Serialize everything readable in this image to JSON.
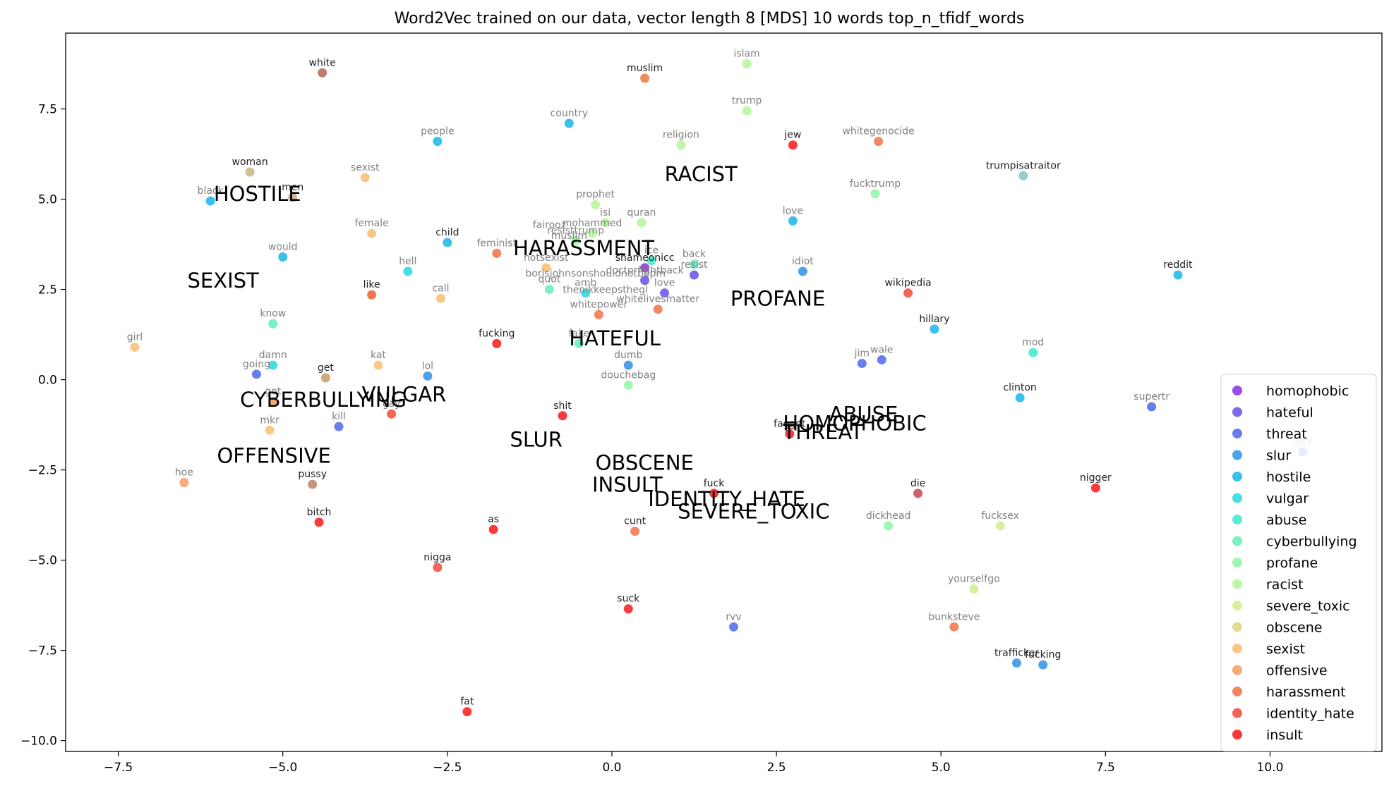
{
  "chart_data": {
    "type": "scatter",
    "title": "Word2Vec trained on our data, vector length 8 [MDS] 10 words top_n_tfidf_words",
    "xlabel": "",
    "ylabel": "",
    "xlim": [
      -8.3,
      11.7
    ],
    "ylim": [
      -10.3,
      9.6
    ],
    "x_ticks": [
      -7.5,
      -5.0,
      -2.5,
      0.0,
      2.5,
      5.0,
      7.5,
      10.0
    ],
    "x_tick_labels": [
      "−7.5",
      "−5.0",
      "−2.5",
      "0.0",
      "2.5",
      "5.0",
      "7.5",
      "10.0"
    ],
    "y_ticks": [
      7.5,
      5.0,
      2.5,
      0.0,
      -2.5,
      -5.0,
      -7.5,
      -10.0
    ],
    "y_tick_labels": [
      "7.5",
      "5.0",
      "2.5",
      "0.0",
      "−2.5",
      "−5.0",
      "−7.5",
      "−10.0"
    ],
    "grid": false,
    "legend_position": "lower-right",
    "series": [
      {
        "name": "homophobic",
        "color": "#8b2be2",
        "points": [
          {
            "x": 0.5,
            "y": 3.1,
            "label": "shameonicc",
            "dark": true
          }
        ]
      },
      {
        "name": "hateful",
        "color": "#6a4de8",
        "points": [
          {
            "x": 0.5,
            "y": 2.75,
            "label": "doctorfightback",
            "dark": false
          },
          {
            "x": 0.8,
            "y": 2.4,
            "label": "love",
            "dark": false
          },
          {
            "x": 1.25,
            "y": 2.9,
            "label": "resist",
            "dark": false
          }
        ]
      },
      {
        "name": "threat",
        "color": "#4f67eb",
        "points": [
          {
            "x": -5.4,
            "y": 0.15,
            "label": "going",
            "dark": false
          },
          {
            "x": -4.15,
            "y": -1.3,
            "label": "kill",
            "dark": false
          },
          {
            "x": 3.8,
            "y": 0.45,
            "label": "jim",
            "dark": false
          },
          {
            "x": 4.1,
            "y": 0.55,
            "label": "wale",
            "dark": false
          },
          {
            "x": 1.85,
            "y": -6.85,
            "label": "rvv",
            "dark": false
          },
          {
            "x": 8.2,
            "y": -0.75,
            "label": "supertr",
            "dark": false
          },
          {
            "x": 10.5,
            "y": -2.0,
            "label": "luck",
            "dark": false
          }
        ]
      },
      {
        "name": "slur",
        "color": "#2f90e8",
        "points": [
          {
            "x": -2.8,
            "y": 0.1,
            "label": "lol",
            "dark": false
          },
          {
            "x": 0.25,
            "y": 0.4,
            "label": "dumb",
            "dark": false
          },
          {
            "x": 2.9,
            "y": 3.0,
            "label": "idiot",
            "dark": false
          },
          {
            "x": 6.15,
            "y": -7.85,
            "label": "trafficker",
            "dark": true
          },
          {
            "x": 6.55,
            "y": -7.9,
            "label": "fucking",
            "dark": true
          }
        ]
      },
      {
        "name": "hostile",
        "color": "#18b6e6",
        "points": [
          {
            "x": -6.1,
            "y": 4.95,
            "label": "black",
            "dark": false
          },
          {
            "x": -2.65,
            "y": 6.6,
            "label": "people",
            "dark": false
          },
          {
            "x": -0.65,
            "y": 7.1,
            "label": "country",
            "dark": false
          },
          {
            "x": -5.0,
            "y": 3.4,
            "label": "would",
            "dark": false
          },
          {
            "x": -2.5,
            "y": 3.8,
            "label": "child",
            "dark": true
          },
          {
            "x": 2.75,
            "y": 4.4,
            "label": "love",
            "dark": false
          },
          {
            "x": 4.9,
            "y": 1.4,
            "label": "hillary",
            "dark": true
          },
          {
            "x": 6.2,
            "y": -0.5,
            "label": "clinton",
            "dark": true
          },
          {
            "x": 8.6,
            "y": 2.9,
            "label": "reddit",
            "dark": true
          }
        ]
      },
      {
        "name": "vulgar",
        "color": "#25d8de",
        "points": [
          {
            "x": -3.1,
            "y": 3.0,
            "label": "hell",
            "dark": false
          },
          {
            "x": -5.15,
            "y": 0.4,
            "label": "damn",
            "dark": false
          },
          {
            "x": -0.4,
            "y": 2.4,
            "label": "amb",
            "dark": false
          }
        ]
      },
      {
        "name": "abuse",
        "color": "#3ce8cc",
        "points": [
          {
            "x": 6.4,
            "y": 0.75,
            "label": "mod",
            "dark": false
          },
          {
            "x": 0.6,
            "y": 3.3,
            "label": "ice",
            "dark": false
          }
        ]
      },
      {
        "name": "cyberbullying",
        "color": "#60f0b8",
        "points": [
          {
            "x": -5.15,
            "y": 1.55,
            "label": "know",
            "dark": false
          },
          {
            "x": -0.95,
            "y": 2.5,
            "label": "quot",
            "dark": false
          },
          {
            "x": -0.5,
            "y": 1.0,
            "label": "fake",
            "dark": false
          },
          {
            "x": 1.25,
            "y": 3.2,
            "label": "back",
            "dark": false
          }
        ]
      },
      {
        "name": "profane",
        "color": "#8ef6a6",
        "points": [
          {
            "x": 0.25,
            "y": -0.15,
            "label": "douchebag",
            "dark": false
          },
          {
            "x": 4.0,
            "y": 5.15,
            "label": "fucktrump",
            "dark": false
          },
          {
            "x": 4.2,
            "y": -4.05,
            "label": "dickhead",
            "dark": false
          },
          {
            "x": -0.55,
            "y": 3.85,
            "label": "resisttrump",
            "dark": false
          }
        ]
      },
      {
        "name": "racist",
        "color": "#b4f49a",
        "points": [
          {
            "x": 2.05,
            "y": 8.75,
            "label": "islam",
            "dark": false
          },
          {
            "x": 2.05,
            "y": 7.45,
            "label": "trump",
            "dark": false
          },
          {
            "x": 1.05,
            "y": 6.5,
            "label": "religion",
            "dark": false
          },
          {
            "x": -0.25,
            "y": 4.85,
            "label": "prophet",
            "dark": false
          },
          {
            "x": -0.1,
            "y": 4.35,
            "label": "isi",
            "dark": false
          },
          {
            "x": 0.45,
            "y": 4.35,
            "label": "quran",
            "dark": false
          },
          {
            "x": -0.3,
            "y": 4.05,
            "label": "mohammed",
            "dark": false
          }
        ]
      },
      {
        "name": "severe_toxic",
        "color": "#d2ec8e",
        "points": [
          {
            "x": 5.5,
            "y": -5.8,
            "label": "yourselfgo",
            "dark": false
          },
          {
            "x": 5.9,
            "y": -4.05,
            "label": "fucksex",
            "dark": false
          }
        ]
      },
      {
        "name": "obscene",
        "color": "#e2d486",
        "points": []
      },
      {
        "name": "sexist",
        "color": "#f8be72",
        "points": [
          {
            "x": -3.75,
            "y": 5.6,
            "label": "sexist",
            "dark": false
          },
          {
            "x": -3.65,
            "y": 4.05,
            "label": "female",
            "dark": false
          },
          {
            "x": -7.25,
            "y": 0.9,
            "label": "girl",
            "dark": false
          },
          {
            "x": -2.6,
            "y": 2.25,
            "label": "call",
            "dark": false
          },
          {
            "x": -3.55,
            "y": 0.4,
            "label": "kat",
            "dark": false
          },
          {
            "x": -5.2,
            "y": -1.4,
            "label": "mkr",
            "dark": false
          },
          {
            "x": -1.0,
            "y": 3.1,
            "label": "notsexist",
            "dark": false
          }
        ]
      },
      {
        "name": "offensive",
        "color": "#f89a5e",
        "points": [
          {
            "x": -5.15,
            "y": -0.6,
            "label": "got",
            "dark": false
          },
          {
            "x": -6.5,
            "y": -2.85,
            "label": "hoe",
            "dark": false
          }
        ]
      },
      {
        "name": "harassment",
        "color": "#f07248",
        "points": [
          {
            "x": 0.5,
            "y": 8.35,
            "label": "muslim",
            "dark": true
          },
          {
            "x": 4.05,
            "y": 6.6,
            "label": "whitegenocide",
            "dark": false
          },
          {
            "x": -1.75,
            "y": 3.5,
            "label": "feminist",
            "dark": false
          },
          {
            "x": -0.2,
            "y": 1.8,
            "label": "whitepower",
            "dark": false
          },
          {
            "x": 0.7,
            "y": 1.95,
            "label": "whitelivesmatter",
            "dark": false
          },
          {
            "x": 0.35,
            "y": -4.2,
            "label": "cunt",
            "dark": true
          },
          {
            "x": 5.2,
            "y": -6.85,
            "label": "bunksteve",
            "dark": false
          }
        ]
      },
      {
        "name": "identity_hate",
        "color": "#f04a3a",
        "points": [
          {
            "x": -3.35,
            "y": -0.95,
            "label": "gay",
            "dark": false
          },
          {
            "x": -2.65,
            "y": -5.2,
            "label": "nigga",
            "dark": true
          },
          {
            "x": 4.5,
            "y": 2.4,
            "label": "wikipedia",
            "dark": true
          }
        ]
      },
      {
        "name": "insult",
        "color": "#f81818",
        "points": [
          {
            "x": 2.75,
            "y": 6.5,
            "label": "jew",
            "dark": true
          },
          {
            "x": -1.75,
            "y": 1.0,
            "label": "fucking",
            "dark": true
          },
          {
            "x": -0.75,
            "y": -1.0,
            "label": "shit",
            "dark": true
          },
          {
            "x": -4.45,
            "y": -3.95,
            "label": "bitch",
            "dark": true
          },
          {
            "x": -1.8,
            "y": -4.15,
            "label": "as",
            "dark": true
          },
          {
            "x": 1.55,
            "y": -3.15,
            "label": "fuck",
            "dark": true
          },
          {
            "x": 0.25,
            "y": -6.35,
            "label": "suck",
            "dark": true
          },
          {
            "x": -2.2,
            "y": -9.2,
            "label": "fat",
            "dark": true
          },
          {
            "x": 7.35,
            "y": -3.0,
            "label": "nigger",
            "dark": true
          },
          {
            "x": 2.7,
            "y": -1.5,
            "label": "faggot",
            "dark": true
          }
        ]
      }
    ],
    "extra_points": [
      {
        "x": -4.4,
        "y": 8.5,
        "label": "white",
        "color": "#b06a50",
        "dark": true
      },
      {
        "x": -5.5,
        "y": 5.75,
        "label": "woman",
        "color": "#c8b480",
        "dark": true
      },
      {
        "x": -4.85,
        "y": 5.05,
        "label": "men",
        "color": "#c4ac7a",
        "dark": true
      },
      {
        "x": -4.35,
        "y": 0.05,
        "label": "get",
        "color": "#c49c66",
        "dark": true
      },
      {
        "x": -4.55,
        "y": -2.9,
        "label": "pussy",
        "color": "#b88468",
        "dark": true
      },
      {
        "x": 6.25,
        "y": 5.65,
        "label": "trumpisatraitor",
        "color": "#84c6c6",
        "dark": true
      },
      {
        "x": -3.65,
        "y": 2.35,
        "label": "like",
        "color": "#f05e2c",
        "dark": true
      },
      {
        "x": 4.65,
        "y": -3.15,
        "label": "die",
        "color": "#c84450",
        "dark": true
      }
    ],
    "extra_labels": [
      {
        "x": -0.95,
        "y": 4.2,
        "text": "fairooz"
      },
      {
        "x": -0.65,
        "y": 3.9,
        "text": "muslim"
      },
      {
        "x": -0.25,
        "y": 2.85,
        "text": "borisjohnsonshouldnotbepm"
      },
      {
        "x": -0.1,
        "y": 2.4,
        "text": "thenikkeepsthegl"
      }
    ],
    "category_labels": [
      {
        "x": -6.05,
        "y": 4.95,
        "text": "HOSTILE"
      },
      {
        "x": 0.8,
        "y": 5.5,
        "text": "RACIST"
      },
      {
        "x": -6.45,
        "y": 2.55,
        "text": "SEXIST"
      },
      {
        "x": -1.5,
        "y": 3.45,
        "text": "HARASSMENT"
      },
      {
        "x": 1.8,
        "y": 2.05,
        "text": "PROFANE"
      },
      {
        "x": -0.65,
        "y": 0.95,
        "text": "HATEFUL"
      },
      {
        "x": -3.8,
        "y": -0.6,
        "text": "VULGAR"
      },
      {
        "x": -5.65,
        "y": -0.75,
        "text": "CYBERBULLYING"
      },
      {
        "x": -1.55,
        "y": -1.85,
        "text": "SLUR"
      },
      {
        "x": -6.0,
        "y": -2.3,
        "text": "OFFENSIVE"
      },
      {
        "x": -0.25,
        "y": -2.5,
        "text": "OBSCENE"
      },
      {
        "x": -0.3,
        "y": -3.1,
        "text": "INSULT"
      },
      {
        "x": 0.55,
        "y": -3.5,
        "text": "IDENTITY_HATE"
      },
      {
        "x": 1.0,
        "y": -3.85,
        "text": "SEVERE_TOXIC"
      },
      {
        "x": 3.3,
        "y": -1.15,
        "text": "ABUSE"
      },
      {
        "x": 2.6,
        "y": -1.4,
        "text": "HOMOPHOBIC"
      },
      {
        "x": 2.6,
        "y": -1.65,
        "text": "THREAT"
      }
    ]
  }
}
